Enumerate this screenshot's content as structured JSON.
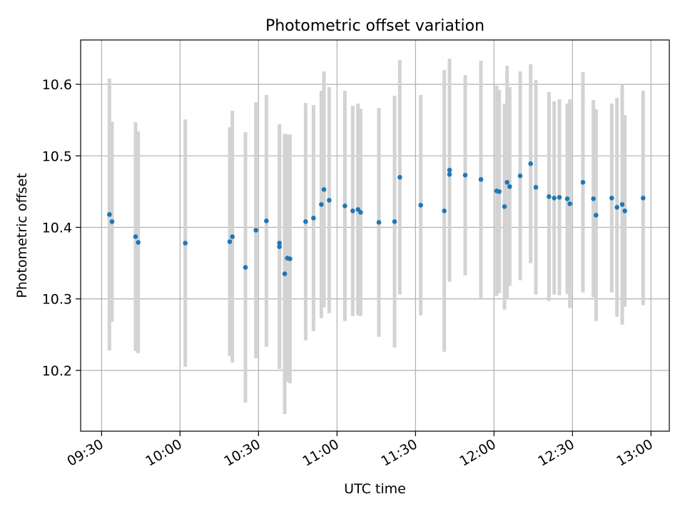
{
  "chart_data": {
    "type": "scatter",
    "title": "Photometric offset variation",
    "xlabel": "UTC time",
    "ylabel": "Photometric offset",
    "x_ticks": [
      "09:30",
      "10:00",
      "10:30",
      "11:00",
      "11:30",
      "12:00",
      "12:30",
      "13:00"
    ],
    "y_ticks": [
      "10.2",
      "10.3",
      "10.4",
      "10.5",
      "10.6"
    ],
    "xlim": [
      "09:22",
      "13:07"
    ],
    "ylim": [
      10.115,
      10.662
    ],
    "grid": true,
    "colors": {
      "points": "#1f77b4",
      "errorbars": "#d3d3d3",
      "grid": "#b0b0b0"
    },
    "series": [
      {
        "x": [
          "09:33",
          "09:34",
          "09:43",
          "09:44",
          "10:02",
          "10:19",
          "10:20",
          "10:25",
          "10:29",
          "10:33",
          "10:38",
          "10:38",
          "10:40",
          "10:41",
          "10:42",
          "10:48",
          "10:51",
          "10:54",
          "10:55",
          "10:57",
          "11:03",
          "11:06",
          "11:08",
          "11:09",
          "11:16",
          "11:22",
          "11:24",
          "11:32",
          "11:41",
          "11:43",
          "11:43",
          "11:49",
          "11:55",
          "12:01",
          "12:02",
          "12:04",
          "12:05",
          "12:06",
          "12:10",
          "12:14",
          "12:16",
          "12:21",
          "12:23",
          "12:25",
          "12:28",
          "12:29",
          "12:34",
          "12:38",
          "12:39",
          "12:45",
          "12:47",
          "12:49",
          "12:50",
          "12:57"
        ],
        "y": [
          10.418,
          10.408,
          10.387,
          10.379,
          10.378,
          10.38,
          10.387,
          10.344,
          10.396,
          10.409,
          10.378,
          10.373,
          10.335,
          10.357,
          10.356,
          10.408,
          10.413,
          10.432,
          10.453,
          10.438,
          10.43,
          10.423,
          10.425,
          10.421,
          10.407,
          10.408,
          10.47,
          10.431,
          10.423,
          10.474,
          10.48,
          10.473,
          10.467,
          10.451,
          10.45,
          10.429,
          10.463,
          10.457,
          10.472,
          10.489,
          10.456,
          10.443,
          10.441,
          10.442,
          10.44,
          10.433,
          10.463,
          10.44,
          10.417,
          10.441,
          10.428,
          10.432,
          10.423,
          10.441
        ],
        "yerr": [
          0.19,
          0.14,
          0.16,
          0.155,
          0.173,
          0.16,
          0.176,
          0.189,
          0.179,
          0.176,
          0.166,
          0.171,
          0.196,
          0.173,
          0.174,
          0.166,
          0.158,
          0.159,
          0.165,
          0.158,
          0.161,
          0.147,
          0.148,
          0.145,
          0.16,
          0.176,
          0.164,
          0.154,
          0.197,
          0.13,
          0.156,
          0.14,
          0.166,
          0.147,
          0.142,
          0.144,
          0.163,
          0.139,
          0.146,
          0.139,
          0.15,
          0.146,
          0.135,
          0.137,
          0.133,
          0.146,
          0.154,
          0.138,
          0.148,
          0.132,
          0.153,
          0.168,
          0.134,
          0.15
        ]
      }
    ]
  }
}
